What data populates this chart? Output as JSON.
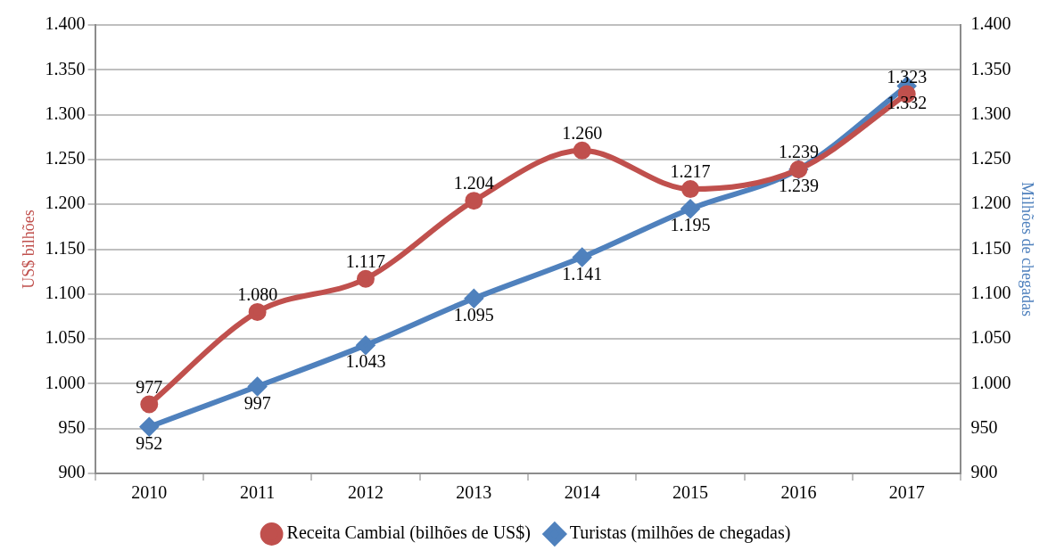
{
  "chart_data": {
    "type": "line",
    "categories": [
      "2010",
      "2011",
      "2012",
      "2013",
      "2014",
      "2015",
      "2016",
      "2017"
    ],
    "ylabel": "US$ bilhões",
    "y2label": "Milhões de chegadas",
    "ylim": [
      900,
      1400
    ],
    "yticks": [
      {
        "value": 900,
        "label": "900"
      },
      {
        "value": 950,
        "label": "950"
      },
      {
        "value": 1000,
        "label": "1.000"
      },
      {
        "value": 1050,
        "label": "1.050"
      },
      {
        "value": 1100,
        "label": "1.100"
      },
      {
        "value": 1150,
        "label": "1.150"
      },
      {
        "value": 1200,
        "label": "1.200"
      },
      {
        "value": 1250,
        "label": "1.250"
      },
      {
        "value": 1300,
        "label": "1.300"
      },
      {
        "value": 1350,
        "label": "1.350"
      },
      {
        "value": 1400,
        "label": "1.400"
      }
    ],
    "y2lim": [
      900,
      1400
    ],
    "y2ticks": [
      {
        "value": 900,
        "label": "900"
      },
      {
        "value": 950,
        "label": "950"
      },
      {
        "value": 1000,
        "label": "1.000"
      },
      {
        "value": 1050,
        "label": "1.050"
      },
      {
        "value": 1100,
        "label": "1.100"
      },
      {
        "value": 1150,
        "label": "1.150"
      },
      {
        "value": 1200,
        "label": "1.200"
      },
      {
        "value": 1250,
        "label": "1.250"
      },
      {
        "value": 1300,
        "label": "1.300"
      },
      {
        "value": 1350,
        "label": "1.350"
      },
      {
        "value": 1400,
        "label": "1.400"
      }
    ],
    "series": [
      {
        "name": "Receita Cambial (bilhões de US$)",
        "color": "#c0504d",
        "marker": "circle",
        "values": [
          977,
          1080,
          1117,
          1204,
          1260,
          1217,
          1239,
          1323
        ],
        "value_labels": [
          "977",
          "1.080",
          "1.117",
          "1.204",
          "1.260",
          "1.217",
          "1.239",
          "1.323"
        ]
      },
      {
        "name": "Turistas (milhões de chegadas)",
        "color": "#4f81bd",
        "marker": "diamond",
        "axis": "y2",
        "values": [
          952,
          997,
          1043,
          1095,
          1141,
          1195,
          1239,
          1332
        ],
        "value_labels": [
          "952",
          "997",
          "1.043",
          "1.095",
          "1.141",
          "1.195",
          "1.239",
          "1.332"
        ]
      }
    ],
    "grid": "y",
    "legend": "bottom"
  }
}
